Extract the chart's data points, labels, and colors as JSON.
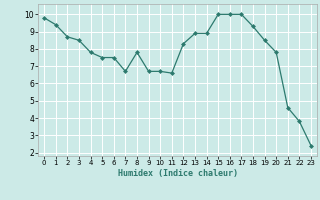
{
  "x": [
    0,
    1,
    2,
    3,
    4,
    5,
    6,
    7,
    8,
    9,
    10,
    11,
    12,
    13,
    14,
    15,
    16,
    17,
    18,
    19,
    20,
    21,
    22,
    23
  ],
  "y": [
    9.8,
    9.4,
    8.7,
    8.5,
    7.8,
    7.5,
    7.5,
    6.7,
    7.8,
    6.7,
    6.7,
    6.6,
    8.3,
    8.9,
    8.9,
    10.0,
    10.0,
    10.0,
    9.3,
    8.5,
    7.8,
    4.6,
    3.8,
    2.4
  ],
  "line_color": "#2d7a6e",
  "marker_color": "#2d7a6e",
  "bg_color": "#cceae7",
  "grid_color": "#ffffff",
  "xlabel": "Humidex (Indice chaleur)",
  "xlim": [
    -0.5,
    23.5
  ],
  "ylim": [
    1.8,
    10.6
  ],
  "yticks": [
    2,
    3,
    4,
    5,
    6,
    7,
    8,
    9,
    10
  ],
  "xticks": [
    0,
    1,
    2,
    3,
    4,
    5,
    6,
    7,
    8,
    9,
    10,
    11,
    12,
    13,
    14,
    15,
    16,
    17,
    18,
    19,
    20,
    21,
    22,
    23
  ],
  "xlabel_fontsize": 6.0,
  "tick_fontsize_x": 5.0,
  "tick_fontsize_y": 5.5
}
